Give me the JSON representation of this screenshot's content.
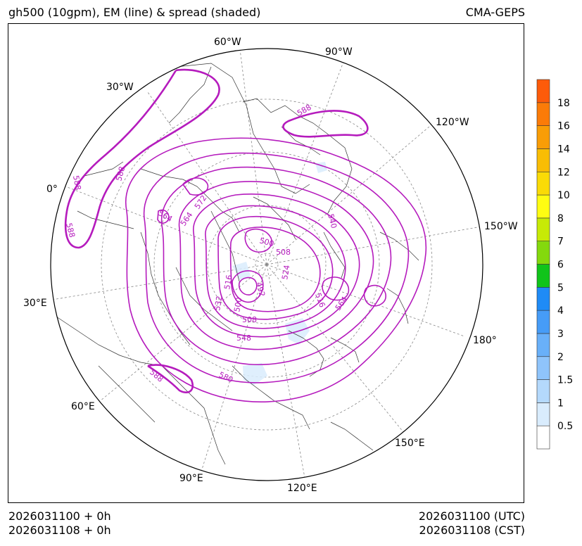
{
  "header": {
    "title_left": "gh500 (10gpm), EM (line) & spread (shaded)",
    "title_right": "CMA-GEPS"
  },
  "footer": {
    "left_line1": "2026031100 + 0h",
    "left_line2": "2026031108 + 0h",
    "right_line1": "2026031100 (UTC)",
    "right_line2": "2026031108 (CST)"
  },
  "map": {
    "projection": "north polar stereographic",
    "longitude_labels": [
      "60°W",
      "90°W",
      "30°W",
      "120°W",
      "0°",
      "150°W",
      "30°E",
      "180°",
      "60°E",
      "150°E",
      "90°E",
      "120°E"
    ],
    "contour_labels": [
      "588",
      "588",
      "588",
      "588",
      "564",
      "572",
      "564",
      "540",
      "500",
      "508",
      "516",
      "492",
      "524",
      "532",
      "500",
      "508",
      "548",
      "516",
      "564",
      "580",
      "588"
    ],
    "contour_color": "#b51bbd",
    "coastline_color": "#333333",
    "graticule_color": "#888888"
  },
  "colorbar": {
    "levels": [
      "0.5",
      "1",
      "1.5",
      "2",
      "3",
      "4",
      "5",
      "6",
      "7",
      "8",
      "10",
      "12",
      "14",
      "16",
      "18"
    ],
    "colors": [
      "#ffffff",
      "#d9ecfd",
      "#b4d9fc",
      "#8fc4fb",
      "#69b0f9",
      "#469cf7",
      "#1f8bf6",
      "#10c41a",
      "#84d90d",
      "#c7ea06",
      "#fffd12",
      "#fadb06",
      "#f9bd04",
      "#f99d06",
      "#fb7b08",
      "#fd5b0a"
    ]
  }
}
